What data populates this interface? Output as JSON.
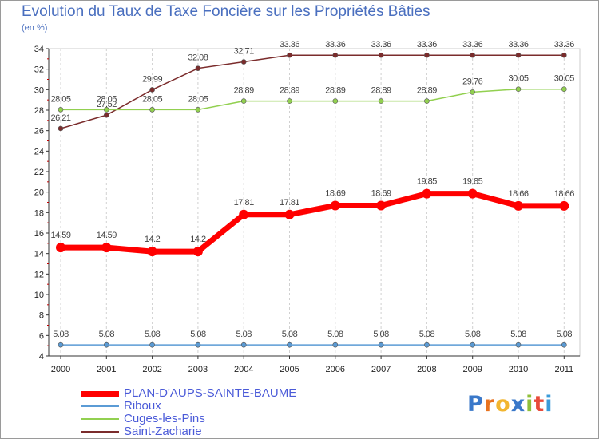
{
  "chart_data": {
    "type": "line",
    "title": "Evolution du Taux de Taxe Foncière sur les Propriétés Bâties",
    "subtitle": "(en %)",
    "xlabel": "",
    "ylabel": "",
    "x": [
      "2000",
      "2001",
      "2002",
      "2003",
      "2004",
      "2005",
      "2006",
      "2007",
      "2008",
      "2009",
      "2010",
      "2011"
    ],
    "ylim": [
      4,
      34
    ],
    "yticks": [
      "4",
      "6",
      "8",
      "10",
      "12",
      "14",
      "16",
      "18",
      "20",
      "22",
      "24",
      "26",
      "28",
      "30",
      "32",
      "34"
    ],
    "grid": "vertical dashed",
    "legend_position": "bottom-left",
    "series": [
      {
        "name": "PLAN-D'AUPS-SAINTE-BAUME",
        "color": "#ff0000",
        "values": [
          14.59,
          14.59,
          14.2,
          14.2,
          17.81,
          17.81,
          18.69,
          18.69,
          19.85,
          19.85,
          18.66,
          18.66
        ],
        "labels": [
          "14.59",
          "14.59",
          "14.2",
          "14.2",
          "17.81",
          "17.81",
          "18.69",
          "18.69",
          "19.85",
          "19.85",
          "18.66",
          "18.66"
        ]
      },
      {
        "name": "Riboux",
        "color": "#5b9bd5",
        "values": [
          5.08,
          5.08,
          5.08,
          5.08,
          5.08,
          5.08,
          5.08,
          5.08,
          5.08,
          5.08,
          5.08,
          5.08
        ],
        "labels": [
          "5.08",
          "5.08",
          "5.08",
          "5.08",
          "5.08",
          "5.08",
          "5.08",
          "5.08",
          "5.08",
          "5.08",
          "5.08",
          "5.08"
        ]
      },
      {
        "name": "Cuges-les-Pins",
        "color": "#92d050",
        "values": [
          28.05,
          28.05,
          28.05,
          28.05,
          28.89,
          28.89,
          28.89,
          28.89,
          28.89,
          29.76,
          30.05,
          30.05
        ],
        "labels": [
          "28.05",
          "28.05",
          "28.05",
          "28.05",
          "28.89",
          "28.89",
          "28.89",
          "28.89",
          "28.89",
          "29.76",
          "30.05",
          "30.05"
        ]
      },
      {
        "name": "Saint-Zacharie",
        "color": "#7b2c2c",
        "values": [
          26.21,
          27.52,
          29.99,
          32.08,
          32.71,
          33.36,
          33.36,
          33.36,
          33.36,
          33.36,
          33.36,
          33.36
        ],
        "labels": [
          "26.21",
          "27.52",
          "29.99",
          "32.08",
          "32.71",
          "33.36",
          "33.36",
          "33.36",
          "33.36",
          "33.36",
          "33.36",
          "33.36"
        ]
      }
    ]
  },
  "legend": {
    "items": [
      {
        "label": "PLAN-D'AUPS-SAINTE-BAUME",
        "color": "#ff0000"
      },
      {
        "label": "Riboux",
        "color": "#5b9bd5"
      },
      {
        "label": "Cuges-les-Pins",
        "color": "#92d050"
      },
      {
        "label": "Saint-Zacharie",
        "color": "#7b2c2c"
      }
    ]
  },
  "logo": {
    "letters": [
      "P",
      "r",
      "o",
      "x",
      "i",
      "t",
      "i"
    ],
    "colors": [
      "#3a78c9",
      "#e8731f",
      "#f2b630",
      "#3a78c9",
      "#8fbf3a",
      "#e84a3a",
      "#3a9bd9"
    ]
  }
}
